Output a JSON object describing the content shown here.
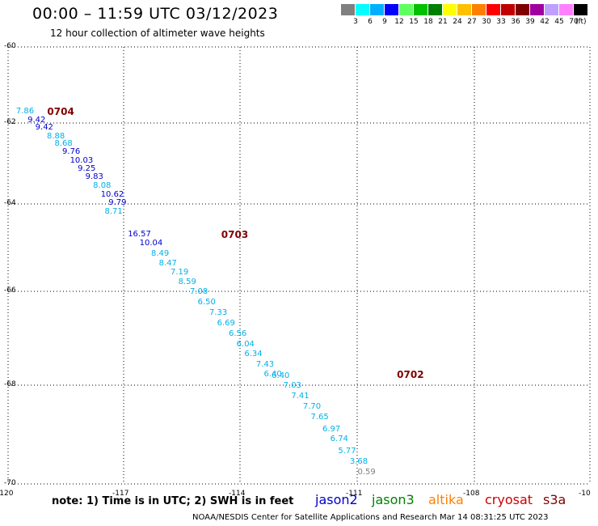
{
  "header": {
    "title": "00:00 – 11:59 UTC 03/12/2023",
    "subtitle": "12 hour collection of altimeter wave heights"
  },
  "color_scale": {
    "colors": [
      "#808080",
      "#00ffff",
      "#00b0ff",
      "#0000ff",
      "#60ff60",
      "#00c000",
      "#008000",
      "#ffff00",
      "#ffc000",
      "#ff8000",
      "#ff0000",
      "#c00000",
      "#800000",
      "#a000a0",
      "#c0a0ff",
      "#ff80ff",
      "#000000"
    ],
    "labels": [
      "3",
      "6",
      "9",
      "12",
      "15",
      "18",
      "21",
      "24",
      "27",
      "30",
      "33",
      "36",
      "39",
      "42",
      "45",
      "70"
    ],
    "unit": "(ft)"
  },
  "map": {
    "lat_labels": [
      "-60",
      "-62",
      "-64",
      "-66",
      "-68",
      "-70"
    ],
    "lon_labels": [
      "-120",
      "-117",
      "-114",
      "-111",
      "-108",
      "-10"
    ],
    "cycles": [
      {
        "label": "0704",
        "lon": -118.9,
        "lat": -61.72
      },
      {
        "label": "0703",
        "lon": -114.4,
        "lat": -64.72
      },
      {
        "label": "0702",
        "lon": -109.9,
        "lat": -67.8
      }
    ],
    "points": [
      {
        "v": "7.86",
        "lon": -119.5,
        "lat": -61.72,
        "sat": "cryosat"
      },
      {
        "v": "9.42",
        "lon": -119.2,
        "lat": -61.95,
        "sat": "jason2"
      },
      {
        "v": "9.42",
        "lon": -119.0,
        "lat": -62.13,
        "sat": "jason2"
      },
      {
        "v": "8.88",
        "lon": -118.7,
        "lat": -62.35,
        "sat": "cryosat"
      },
      {
        "v": "8.68",
        "lon": -118.5,
        "lat": -62.53,
        "sat": "cryosat"
      },
      {
        "v": "9.76",
        "lon": -118.3,
        "lat": -62.74,
        "sat": "jason2"
      },
      {
        "v": "10.03",
        "lon": -118.1,
        "lat": -62.95,
        "sat": "jason2"
      },
      {
        "v": "9.25",
        "lon": -117.9,
        "lat": -63.15,
        "sat": "jason2"
      },
      {
        "v": "9.83",
        "lon": -117.7,
        "lat": -63.36,
        "sat": "jason2"
      },
      {
        "v": "8.08",
        "lon": -117.5,
        "lat": -63.57,
        "sat": "cryosat"
      },
      {
        "v": "10.62",
        "lon": -117.3,
        "lat": -63.79,
        "sat": "jason2"
      },
      {
        "v": "9.79",
        "lon": -117.1,
        "lat": -63.99,
        "sat": "jason2"
      },
      {
        "v": "8.71",
        "lon": -117.2,
        "lat": -64.21,
        "sat": "cryosat"
      },
      {
        "v": "16.57",
        "lon": -116.6,
        "lat": -64.72,
        "sat": "jason2"
      },
      {
        "v": "10.04",
        "lon": -116.3,
        "lat": -64.93,
        "sat": "jason2"
      },
      {
        "v": "8.49",
        "lon": -116.0,
        "lat": -65.16,
        "sat": "cryosat"
      },
      {
        "v": "8.47",
        "lon": -115.8,
        "lat": -65.38,
        "sat": "cryosat"
      },
      {
        "v": "7.19",
        "lon": -115.5,
        "lat": -65.6,
        "sat": "cryosat"
      },
      {
        "v": "8.59",
        "lon": -115.3,
        "lat": -65.82,
        "sat": "cryosat"
      },
      {
        "v": "7.08",
        "lon": -115.0,
        "lat": -66.04,
        "sat": "cryosat"
      },
      {
        "v": "6.50",
        "lon": -114.8,
        "lat": -66.26,
        "sat": "cryosat"
      },
      {
        "v": "7.33",
        "lon": -114.5,
        "lat": -66.48,
        "sat": "cryosat"
      },
      {
        "v": "6.69",
        "lon": -114.3,
        "lat": -66.7,
        "sat": "cryosat"
      },
      {
        "v": "6.56",
        "lon": -114.0,
        "lat": -66.93,
        "sat": "cryosat"
      },
      {
        "v": "6.04",
        "lon": -113.8,
        "lat": -67.15,
        "sat": "cryosat"
      },
      {
        "v": "6.34",
        "lon": -113.6,
        "lat": -67.37,
        "sat": "cryosat"
      },
      {
        "v": "7.43",
        "lon": -113.3,
        "lat": -67.59,
        "sat": "cryosat"
      },
      {
        "v": "6.40",
        "lon": -113.1,
        "lat": -67.8,
        "sat": "cryosat"
      },
      {
        "v": "6.40",
        "lon": -112.9,
        "lat": -67.82,
        "sat": "cryosat"
      },
      {
        "v": "7.03",
        "lon": -112.6,
        "lat": -68.03,
        "sat": "cryosat"
      },
      {
        "v": "7.41",
        "lon": -112.4,
        "lat": -68.24,
        "sat": "cryosat"
      },
      {
        "v": "7.70",
        "lon": -112.1,
        "lat": -68.46,
        "sat": "cryosat"
      },
      {
        "v": "7.65",
        "lon": -111.9,
        "lat": -68.68,
        "sat": "cryosat"
      },
      {
        "v": "6.97",
        "lon": -111.6,
        "lat": -68.91,
        "sat": "cryosat"
      },
      {
        "v": "6.74",
        "lon": -111.4,
        "lat": -69.12,
        "sat": "cryosat"
      },
      {
        "v": "5.77",
        "lon": -111.2,
        "lat": -69.36,
        "sat": "cryosat"
      },
      {
        "v": "3.68",
        "lon": -110.9,
        "lat": -69.57,
        "sat": "cryosat"
      },
      {
        "v": "0.59",
        "lon": -110.7,
        "lat": -69.78,
        "sat": "gray"
      }
    ]
  },
  "note": "note:  1) Time is in UTC;  2) SWH is in feet",
  "satellites": [
    {
      "name": "jason2",
      "color": "#0000cc"
    },
    {
      "name": "jason3",
      "color": "#008000"
    },
    {
      "name": "altika",
      "color": "#ff8000"
    },
    {
      "name": "cryosat",
      "color": "#cc0000"
    },
    {
      "name": "s3a",
      "color": "#800000"
    }
  ],
  "footer": "NOAA/NESDIS Center for Satellite Applications and Research    Mar 14 08:31:25 UTC 2023"
}
